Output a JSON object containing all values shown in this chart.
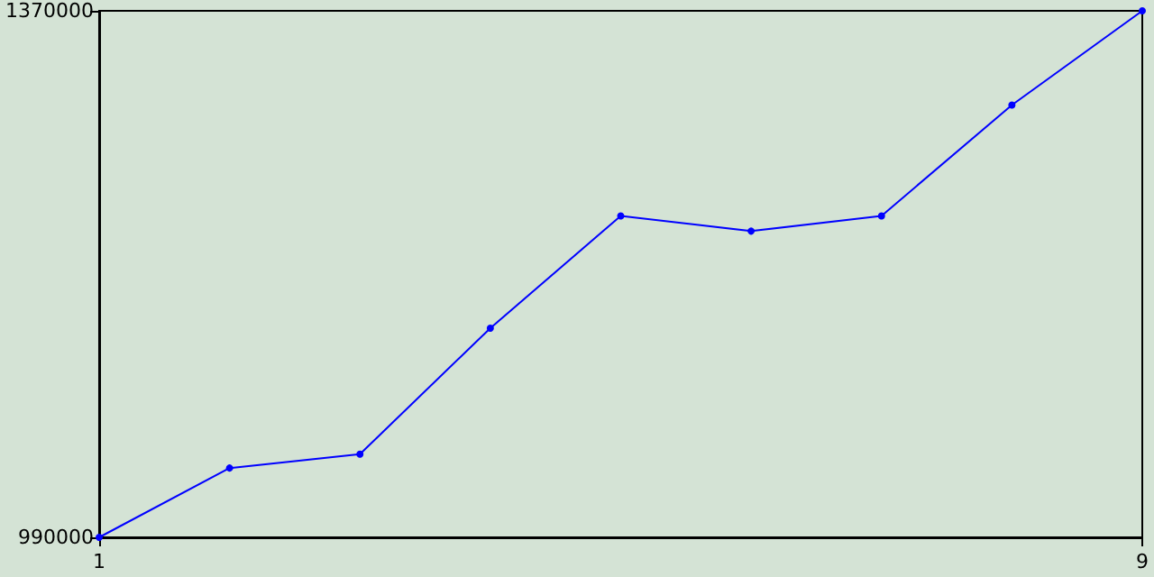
{
  "chart_data": {
    "type": "line",
    "x": [
      1,
      2,
      3,
      4,
      5,
      6,
      7,
      8,
      9
    ],
    "series": [
      {
        "color": "#0000ff",
        "values": [
          990000,
          1040000,
          1050000,
          1141000,
          1222000,
          1211000,
          1222000,
          1302000,
          1370000
        ]
      }
    ],
    "xlim": [
      1,
      9
    ],
    "xticks": [
      1,
      9
    ],
    "ylim": [
      990000,
      1370000
    ],
    "yticks": [
      990000,
      1370000
    ],
    "grid": false,
    "marker": "circle",
    "line_style": "solid"
  }
}
